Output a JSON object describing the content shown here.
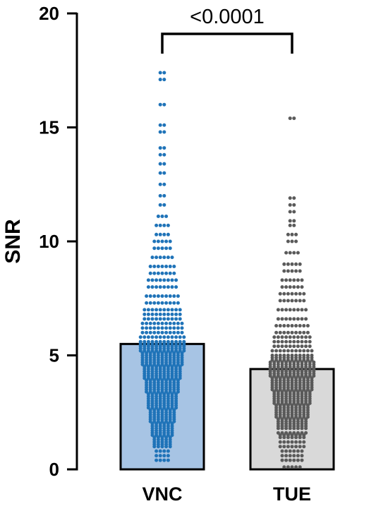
{
  "chart_data": {
    "type": "bar",
    "ylabel": "SNR",
    "ylim": [
      0,
      20
    ],
    "yticks": [
      0,
      5,
      10,
      15,
      20
    ],
    "grid": false,
    "categories": [
      "VNC",
      "TUE"
    ],
    "values": [
      5.5,
      4.4
    ],
    "bar_colors": [
      "#a7c4e4",
      "#d9d9d9"
    ],
    "point_colors": [
      "#1f73b8",
      "#5a5a5a"
    ],
    "comparison": {
      "groups": [
        "VNC",
        "TUE"
      ],
      "label": "<0.0001"
    },
    "points": [
      [
        0.4,
        0.6,
        0.8,
        1.0,
        1.1,
        1.2,
        1.3,
        1.4,
        1.5,
        1.6,
        1.7,
        1.8,
        1.9,
        2.0,
        2.1,
        2.2,
        2.3,
        2.4,
        2.5,
        2.6,
        2.7,
        2.8,
        2.9,
        3.0,
        3.1,
        3.2,
        3.3,
        3.4,
        3.5,
        3.6,
        3.7,
        3.8,
        3.9,
        4.0,
        4.1,
        4.2,
        4.3,
        4.4,
        4.5,
        4.6,
        4.7,
        4.8,
        4.9,
        5.0,
        5.1,
        5.2,
        5.3,
        5.4,
        5.5,
        5.6,
        5.8,
        6.0,
        6.2,
        6.4,
        6.6,
        6.8,
        7.0,
        7.3,
        7.6,
        8.0,
        8.3,
        8.6,
        8.9,
        9.3,
        9.7,
        10.0,
        10.3,
        10.7,
        11.1,
        11.6,
        12.0,
        12.5,
        13.0,
        13.4,
        13.8,
        14.1,
        14.8,
        15.1,
        16.0,
        17.1,
        17.4
      ],
      [
        0.1,
        0.4,
        0.6,
        0.8,
        1.0,
        1.2,
        1.4,
        1.5,
        1.6,
        1.8,
        1.9,
        2.0,
        2.1,
        2.2,
        2.3,
        2.4,
        2.5,
        2.6,
        2.7,
        2.8,
        2.9,
        3.0,
        3.1,
        3.2,
        3.3,
        3.4,
        3.5,
        3.6,
        3.7,
        3.8,
        3.9,
        4.0,
        4.1,
        4.2,
        4.3,
        4.4,
        4.5,
        4.6,
        4.7,
        4.8,
        4.9,
        5.0,
        5.2,
        5.4,
        5.6,
        5.8,
        6.0,
        6.3,
        6.6,
        7.0,
        7.4,
        7.7,
        8.0,
        8.3,
        8.7,
        9.0,
        9.5,
        10.0,
        10.3,
        10.7,
        10.9,
        11.3,
        11.6,
        11.9,
        15.4
      ]
    ]
  }
}
